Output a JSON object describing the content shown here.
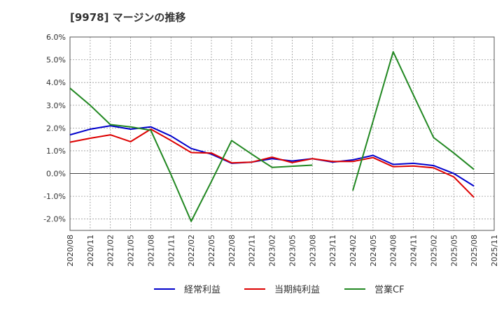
{
  "title": "[9978]  マージンの推移",
  "chart_data": {
    "type": "line",
    "title": "[9978]  マージンの推移",
    "xlabel": "",
    "ylabel": "",
    "ylim": [
      -2.5,
      6.0
    ],
    "yticks": [
      -2.0,
      -1.0,
      0.0,
      1.0,
      2.0,
      3.0,
      4.0,
      5.0,
      6.0
    ],
    "ytick_labels": [
      "-2.0%",
      "-1.0%",
      "0.0%",
      "1.0%",
      "2.0%",
      "3.0%",
      "4.0%",
      "5.0%",
      "6.0%"
    ],
    "categories": [
      "2020/08",
      "2020/11",
      "2021/02",
      "2021/05",
      "2021/08",
      "2021/11",
      "2022/02",
      "2022/05",
      "2022/08",
      "2022/11",
      "2023/02",
      "2023/05",
      "2023/08",
      "2023/11",
      "2024/02",
      "2024/05",
      "2024/08",
      "2024/11",
      "2025/02",
      "2025/05",
      "2025/08",
      "2025/11"
    ],
    "grid": true,
    "legend_position": "bottom",
    "series": [
      {
        "name": "経常利益",
        "color": "#0000cc",
        "values": [
          1.7,
          1.95,
          2.1,
          1.95,
          2.05,
          1.65,
          1.1,
          0.85,
          0.45,
          0.5,
          0.65,
          0.55,
          0.65,
          0.5,
          0.6,
          0.8,
          0.4,
          0.45,
          0.35,
          0.0,
          -0.55,
          null
        ]
      },
      {
        "name": "当期純利益",
        "color": "#dd0000",
        "values": [
          1.38,
          1.55,
          1.7,
          1.4,
          1.95,
          1.45,
          0.92,
          0.9,
          0.47,
          0.5,
          0.72,
          0.48,
          0.65,
          0.53,
          0.53,
          0.7,
          0.3,
          0.33,
          0.25,
          -0.15,
          -1.05,
          null
        ]
      },
      {
        "name": "営業CF",
        "color": "#228822",
        "values": [
          3.75,
          3.0,
          2.15,
          2.05,
          1.9,
          -0.05,
          -2.1,
          -0.35,
          1.45,
          0.85,
          0.27,
          0.32,
          0.37,
          null,
          -0.75,
          2.3,
          5.35,
          3.45,
          1.58,
          0.9,
          0.18,
          null
        ]
      }
    ]
  }
}
